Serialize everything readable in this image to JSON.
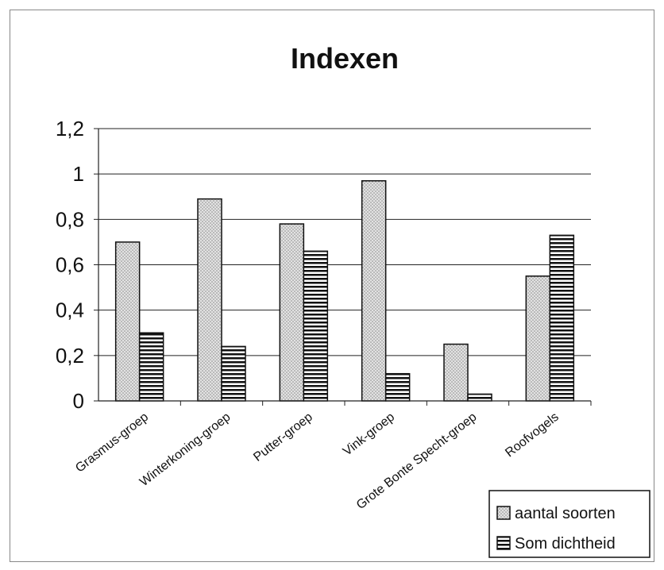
{
  "chart_data": {
    "type": "bar",
    "title": "Indexen",
    "xlabel": "",
    "ylabel": "",
    "ylim": [
      0,
      1.2
    ],
    "yticks": [
      "0",
      "0,2",
      "0,4",
      "0,6",
      "0,8",
      "1",
      "1,2"
    ],
    "grid": true,
    "legend_position": "bottom-right",
    "categories": [
      "Grasmus-groep",
      "Winterkoning-groep",
      "Putter-groep",
      "Vink-groep",
      "Grote Bonte Specht-groep",
      "Roofvogels"
    ],
    "series": [
      {
        "name": "aantal soorten",
        "values": [
          0.7,
          0.89,
          0.78,
          0.97,
          0.25,
          0.55
        ],
        "pattern": "dots",
        "color": "#d8d8d8"
      },
      {
        "name": "Som dichtheid",
        "values": [
          0.3,
          0.24,
          0.66,
          0.12,
          0.03,
          0.73
        ],
        "pattern": "hstripes",
        "color": "#111111"
      }
    ]
  }
}
